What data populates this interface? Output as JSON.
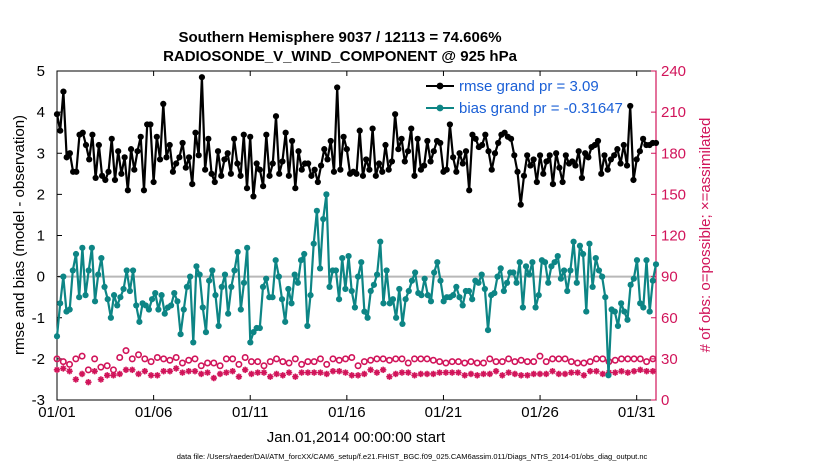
{
  "chart_data": {
    "type": "line",
    "title_line1": "Southern Hemisphere 9037 / 12113 = 74.606%",
    "title_line2": "RADIOSONDE_V_WIND_COMPONENT @ 925 hPa",
    "xlabel": "Jan.01,2014 00:00:00 start",
    "ylabel_left": "rmse and bias (model - observation)",
    "ylabel_right": "# of obs: o=possible; ×=assimilated",
    "footnote": "data file: /Users/raeder/DAI/ATM_forcXX/CAM6_setup/f.e21.FHIST_BGC.f09_025.CAM6assim.011/Diags_NTrS_2014-01/obs_diag_output.nc",
    "x_range": [
      1,
      32
    ],
    "y_left_range": [
      -3,
      5
    ],
    "y_right_range": [
      0,
      240
    ],
    "x_tick_values": [
      1,
      6,
      11,
      16,
      21,
      26,
      31
    ],
    "x_tick_labels": [
      "01/01",
      "01/06",
      "01/11",
      "01/16",
      "01/21",
      "01/26",
      "01/31"
    ],
    "y_left_ticks": [
      "-3",
      "-2",
      "-1",
      "0",
      "1",
      "2",
      "3",
      "4",
      "5"
    ],
    "y_right_ticks": [
      "0",
      "30",
      "60",
      "90",
      "120",
      "150",
      "180",
      "210",
      "240"
    ],
    "colors": {
      "rmse": "#000000",
      "bias": "#0d8585",
      "obs": "#d1145a",
      "legend_text": "#1a5fd6",
      "zero_line": "#b8b8b8"
    },
    "series": [
      {
        "name": "rmse",
        "legend": "rmse grand pr = 3.09",
        "values": [
          3.95,
          3.55,
          4.5,
          2.9,
          3.0,
          2.55,
          2.55,
          3.45,
          3.5,
          3.2,
          2.85,
          3.45,
          2.4,
          3.2,
          2.45,
          2.35,
          2.55,
          3.35,
          2.35,
          3.05,
          2.5,
          2.9,
          2.1,
          3.1,
          2.6,
          3.05,
          3.4,
          2.1,
          3.7,
          3.7,
          2.3,
          3.4,
          2.85,
          4.2,
          2.9,
          3.2,
          2.55,
          2.75,
          2.9,
          3.25,
          2.65,
          2.9,
          2.25,
          3.5,
          2.95,
          4.85,
          2.6,
          3.35,
          2.5,
          2.3,
          3.05,
          2.45,
          2.85,
          3.0,
          2.5,
          3.35,
          2.75,
          2.45,
          3.45,
          2.15,
          3.4,
          1.95,
          2.75,
          2.6,
          2.2,
          3.45,
          2.45,
          2.75,
          3.9,
          2.5,
          2.8,
          3.5,
          2.45,
          3.3,
          2.15,
          3.05,
          2.6,
          2.75,
          2.75,
          2.45,
          2.6,
          2.3,
          2.7,
          3.1,
          2.85,
          3.3,
          2.55,
          4.6,
          2.6,
          3.4,
          3.1,
          2.5,
          2.55,
          2.5,
          3.55,
          2.45,
          2.85,
          2.6,
          3.6,
          2.45,
          2.75,
          2.55,
          3.2,
          2.6,
          2.8,
          3.95,
          3.1,
          3.35,
          2.8,
          3.05,
          3.6,
          2.45,
          3.35,
          2.6,
          2.7,
          3.3,
          2.8,
          3.05,
          3.3,
          3.25,
          2.55,
          2.6,
          3.7,
          2.9,
          2.55,
          3.0,
          2.75,
          3.05,
          2.1,
          3.45,
          3.35,
          3.15,
          3.2,
          3.45,
          3.05,
          2.6,
          3.0,
          3.25,
          3.45,
          3.5,
          3.4,
          3.35,
          2.95,
          2.55,
          1.75,
          2.45,
          2.95,
          2.7,
          2.85,
          2.3,
          2.95,
          2.5,
          2.8,
          2.95,
          2.25,
          3.0,
          2.65,
          2.3,
          2.95,
          2.75,
          2.8,
          2.7,
          3.05,
          2.4,
          3.0,
          2.9,
          3.15,
          3.2,
          3.3,
          2.5,
          2.95,
          2.6,
          2.85,
          2.95,
          3.1,
          2.75,
          3.2,
          2.7,
          4.15,
          2.35,
          2.85,
          3.05,
          3.35,
          3.2,
          3.2,
          3.25,
          3.25
        ]
      },
      {
        "name": "bias",
        "legend": "bias grand pr = -0.31647",
        "values": [
          -1.45,
          -0.65,
          0.0,
          -0.85,
          -0.8,
          0.15,
          0.55,
          -0.5,
          0.7,
          -0.45,
          0.15,
          0.7,
          -0.6,
          0.05,
          0.45,
          -0.25,
          -0.55,
          -1.0,
          -0.45,
          -0.7,
          -0.5,
          -0.3,
          0.15,
          -0.35,
          0.15,
          -0.7,
          -1.1,
          -0.65,
          -0.7,
          -0.8,
          -0.55,
          -0.4,
          -0.8,
          -0.45,
          -0.9,
          -0.75,
          -0.7,
          -0.4,
          -0.6,
          -1.4,
          -0.8,
          -0.25,
          0.0,
          -1.6,
          0.25,
          0.05,
          -0.75,
          -1.35,
          -0.1,
          0.15,
          -0.45,
          -1.2,
          -0.25,
          0.05,
          -0.9,
          -0.25,
          0.15,
          0.6,
          -0.8,
          -0.15,
          0.7,
          -1.6,
          -1.35,
          -1.25,
          -1.25,
          -0.25,
          -0.05,
          -0.5,
          -0.5,
          0.4,
          0.0,
          -0.55,
          -1.1,
          -0.3,
          -0.65,
          0.05,
          -0.15,
          0.4,
          0.55,
          -1.2,
          -0.45,
          0.8,
          1.6,
          0.2,
          1.4,
          2.0,
          -0.25,
          0.15,
          0.15,
          -0.55,
          0.45,
          -0.3,
          0.5,
          -0.35,
          -0.75,
          0.0,
          0.35,
          -0.85,
          -1.0,
          -0.35,
          -0.2,
          0.05,
          0.85,
          -0.65,
          0.15,
          -0.65,
          -0.55,
          -1.0,
          -0.3,
          -1.15,
          -0.55,
          -0.35,
          -0.1,
          0.1,
          -0.4,
          -0.45,
          -0.05,
          -0.45,
          -0.6,
          0.1,
          0.35,
          -0.1,
          -0.6,
          -0.5,
          -0.5,
          -0.45,
          -0.25,
          -0.5,
          -0.7,
          -0.35,
          -0.35,
          -0.55,
          -0.1,
          -0.15,
          0.05,
          -0.3,
          -1.3,
          -0.45,
          -0.4,
          0.0,
          0.2,
          -0.35,
          -0.15,
          0.1,
          0.1,
          -0.15,
          0.35,
          -0.75,
          0.25,
          0.05,
          0.35,
          -0.75,
          -0.45,
          0.4,
          0.35,
          -0.15,
          0.25,
          0.35,
          0.5,
          -0.05,
          0.15,
          -0.35,
          0.15,
          0.85,
          -0.15,
          0.75,
          0.55,
          -0.85,
          0.8,
          -0.25,
          0.45,
          0.15,
          0.0,
          -0.5,
          -2.4,
          -0.8,
          -0.85,
          -1.2,
          -0.65,
          -0.85,
          -1.05,
          -0.2,
          -0.05,
          0.4,
          -0.65,
          -0.75,
          0.4,
          -0.85,
          -0.1,
          0.3
        ]
      },
      {
        "name": "obs_possible",
        "marker": "o",
        "values": [
          30,
          32,
          28,
          28,
          26,
          25,
          30,
          29,
          32,
          30,
          22,
          28,
          30,
          30,
          24,
          27,
          25,
          30,
          22,
          27,
          31,
          33,
          36,
          31,
          30,
          28,
          33,
          27,
          30,
          33,
          28,
          29,
          31,
          27,
          30,
          32,
          29,
          30,
          31,
          28,
          27,
          29,
          29,
          28,
          30,
          30,
          25,
          28,
          27,
          31,
          27,
          22,
          25,
          28,
          30,
          29,
          30,
          26,
          26,
          28,
          31,
          25,
          28,
          28,
          28,
          28,
          25,
          27,
          28,
          30,
          30,
          22,
          28,
          26,
          27,
          28,
          30,
          26,
          26,
          27,
          28,
          30,
          28,
          29,
          30,
          29,
          26,
          32,
          30,
          26,
          29,
          29,
          30,
          28,
          31,
          28,
          25,
          27,
          28,
          27,
          29,
          27,
          30,
          27,
          30,
          31,
          29,
          27,
          30,
          29,
          30,
          24,
          27,
          29,
          30,
          26,
          30,
          27,
          30,
          26,
          29,
          28,
          28,
          30,
          27,
          28,
          28,
          31,
          28,
          32,
          27,
          28,
          28,
          30,
          27,
          27,
          27,
          28,
          30,
          28,
          28,
          33,
          28,
          29,
          30,
          28,
          28,
          31,
          29,
          29,
          28,
          29,
          28,
          28,
          32,
          30,
          28,
          29,
          30,
          30,
          30,
          29,
          30,
          26,
          28,
          30,
          27,
          31,
          27,
          30,
          28,
          30,
          30,
          25,
          30,
          28,
          28,
          30,
          29,
          30,
          30,
          29,
          30,
          30,
          30,
          29,
          30,
          29,
          28,
          26,
          30,
          25
        ]
      },
      {
        "name": "obs_assimilated",
        "marker": "x",
        "values": [
          22,
          20,
          23,
          14,
          21,
          13,
          15,
          22,
          19,
          20,
          13,
          19,
          21,
          20,
          15,
          19,
          18,
          22,
          18,
          20,
          19,
          22,
          22,
          22,
          22,
          19,
          19,
          20,
          21,
          22,
          18,
          20,
          18,
          22,
          21,
          17,
          21,
          21,
          23,
          20,
          20,
          18,
          21,
          20,
          21,
          21,
          19,
          19,
          20,
          21,
          16,
          18,
          19,
          20,
          20,
          20,
          21,
          20,
          17,
          18,
          22,
          21,
          19,
          21,
          20,
          22,
          20,
          21,
          17,
          19,
          19,
          16,
          18,
          18,
          20,
          16,
          17,
          21,
          20,
          20,
          20,
          22,
          20,
          20,
          20,
          17,
          19,
          20,
          21,
          20,
          21,
          18,
          20,
          20,
          18,
          22,
          18,
          19,
          19,
          17,
          22,
          19,
          20,
          19,
          22,
          21,
          17,
          20,
          19,
          21,
          20,
          19,
          20,
          22,
          18,
          20,
          19,
          21,
          19,
          20,
          19,
          18,
          20,
          20,
          20,
          20,
          20,
          18,
          20,
          22,
          18,
          19,
          19,
          20,
          18,
          19,
          19,
          22,
          19,
          20,
          21,
          18,
          18,
          19,
          20,
          21,
          19,
          22,
          18,
          21,
          18,
          21,
          19,
          20,
          19,
          22,
          19,
          18,
          21,
          19,
          19,
          20,
          19,
          21,
          20,
          18,
          20,
          21,
          18,
          21,
          21,
          19,
          21,
          22,
          19,
          19,
          20,
          21,
          20,
          21,
          21,
          20,
          20,
          20,
          21,
          21,
          22,
          20,
          21,
          20,
          21,
          22
        ]
      }
    ],
    "legend": {
      "placement": "top-right"
    }
  }
}
